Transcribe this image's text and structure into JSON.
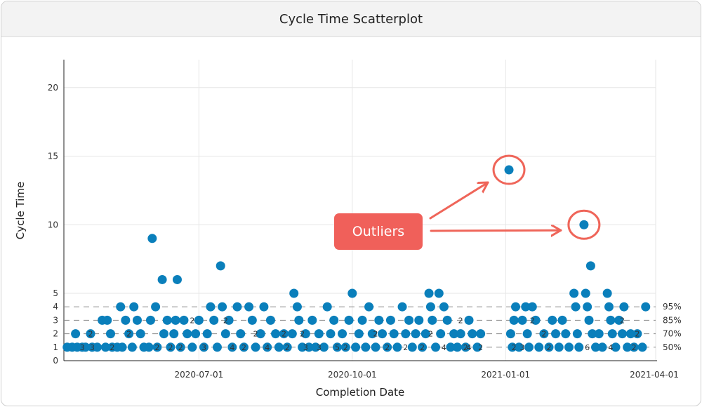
{
  "header": {
    "title": "Cycle Time Scatterplot"
  },
  "callout": {
    "label": "Outliers"
  },
  "colors": {
    "point": "#0a7fbb",
    "accent": "#ef6559",
    "grid": "#e6e6e6"
  },
  "chart_data": {
    "type": "scatter",
    "title": "Cycle Time Scatterplot",
    "xlabel": "Completion Date",
    "ylabel": "Cycle Time",
    "xlim": [
      "2020-04-11",
      "2021-04-01"
    ],
    "ylim": [
      0,
      22
    ],
    "x_ticks": [
      "2020-07-01",
      "2020-10-01",
      "2021-01-01",
      "2021-04-01"
    ],
    "y_ticks": [
      0,
      1,
      2,
      3,
      4,
      5,
      10,
      15,
      20
    ],
    "grid": true,
    "percentiles": [
      {
        "label": "50%",
        "value": 1
      },
      {
        "label": "70%",
        "value": 2
      },
      {
        "label": "85%",
        "value": 3
      },
      {
        "label": "95%",
        "value": 4
      }
    ],
    "points": [
      {
        "x": "2020-04-13",
        "y": 1
      },
      {
        "x": "2020-04-16",
        "y": 1
      },
      {
        "x": "2020-04-18",
        "y": 2
      },
      {
        "x": "2020-04-19",
        "y": 1
      },
      {
        "x": "2020-04-22",
        "y": 1
      },
      {
        "x": "2020-04-24",
        "y": 1
      },
      {
        "x": "2020-04-27",
        "y": 2
      },
      {
        "x": "2020-04-28",
        "y": 1
      },
      {
        "x": "2020-05-01",
        "y": 1
      },
      {
        "x": "2020-05-04",
        "y": 3
      },
      {
        "x": "2020-05-06",
        "y": 1
      },
      {
        "x": "2020-05-07",
        "y": 3
      },
      {
        "x": "2020-05-09",
        "y": 2
      },
      {
        "x": "2020-05-10",
        "y": 1
      },
      {
        "x": "2020-05-13",
        "y": 1
      },
      {
        "x": "2020-05-15",
        "y": 4
      },
      {
        "x": "2020-05-16",
        "y": 1
      },
      {
        "x": "2020-05-18",
        "y": 3
      },
      {
        "x": "2020-05-20",
        "y": 2
      },
      {
        "x": "2020-05-22",
        "y": 1
      },
      {
        "x": "2020-05-23",
        "y": 4
      },
      {
        "x": "2020-05-25",
        "y": 3
      },
      {
        "x": "2020-05-27",
        "y": 2
      },
      {
        "x": "2020-05-29",
        "y": 1
      },
      {
        "x": "2020-06-01",
        "y": 1
      },
      {
        "x": "2020-06-02",
        "y": 3
      },
      {
        "x": "2020-06-03",
        "y": 9
      },
      {
        "x": "2020-06-05",
        "y": 4
      },
      {
        "x": "2020-06-06",
        "y": 1
      },
      {
        "x": "2020-06-09",
        "y": 6
      },
      {
        "x": "2020-06-10",
        "y": 2
      },
      {
        "x": "2020-06-12",
        "y": 3
      },
      {
        "x": "2020-06-14",
        "y": 1
      },
      {
        "x": "2020-06-16",
        "y": 2
      },
      {
        "x": "2020-06-17",
        "y": 3
      },
      {
        "x": "2020-06-18",
        "y": 6
      },
      {
        "x": "2020-06-20",
        "y": 1
      },
      {
        "x": "2020-06-22",
        "y": 3
      },
      {
        "x": "2020-06-24",
        "y": 2
      },
      {
        "x": "2020-06-27",
        "y": 1
      },
      {
        "x": "2020-06-29",
        "y": 2
      },
      {
        "x": "2020-07-01",
        "y": 3
      },
      {
        "x": "2020-07-04",
        "y": 1
      },
      {
        "x": "2020-07-06",
        "y": 2
      },
      {
        "x": "2020-07-08",
        "y": 4
      },
      {
        "x": "2020-07-10",
        "y": 3
      },
      {
        "x": "2020-07-12",
        "y": 1
      },
      {
        "x": "2020-07-14",
        "y": 7
      },
      {
        "x": "2020-07-15",
        "y": 4
      },
      {
        "x": "2020-07-17",
        "y": 2
      },
      {
        "x": "2020-07-19",
        "y": 3
      },
      {
        "x": "2020-07-21",
        "y": 1
      },
      {
        "x": "2020-07-24",
        "y": 4
      },
      {
        "x": "2020-07-26",
        "y": 2
      },
      {
        "x": "2020-07-28",
        "y": 1
      },
      {
        "x": "2020-07-31",
        "y": 4
      },
      {
        "x": "2020-08-02",
        "y": 3
      },
      {
        "x": "2020-08-04",
        "y": 1
      },
      {
        "x": "2020-08-07",
        "y": 2
      },
      {
        "x": "2020-08-09",
        "y": 4
      },
      {
        "x": "2020-08-11",
        "y": 1
      },
      {
        "x": "2020-08-13",
        "y": 3
      },
      {
        "x": "2020-08-16",
        "y": 2
      },
      {
        "x": "2020-08-18",
        "y": 1
      },
      {
        "x": "2020-08-21",
        "y": 2
      },
      {
        "x": "2020-08-23",
        "y": 1
      },
      {
        "x": "2020-08-26",
        "y": 2
      },
      {
        "x": "2020-08-27",
        "y": 5
      },
      {
        "x": "2020-08-29",
        "y": 4
      },
      {
        "x": "2020-08-30",
        "y": 3
      },
      {
        "x": "2020-09-01",
        "y": 1
      },
      {
        "x": "2020-09-03",
        "y": 2
      },
      {
        "x": "2020-09-05",
        "y": 1
      },
      {
        "x": "2020-09-07",
        "y": 3
      },
      {
        "x": "2020-09-09",
        "y": 1
      },
      {
        "x": "2020-09-11",
        "y": 2
      },
      {
        "x": "2020-09-14",
        "y": 1
      },
      {
        "x": "2020-09-16",
        "y": 4
      },
      {
        "x": "2020-09-18",
        "y": 2
      },
      {
        "x": "2020-09-20",
        "y": 3
      },
      {
        "x": "2020-09-22",
        "y": 1
      },
      {
        "x": "2020-09-25",
        "y": 2
      },
      {
        "x": "2020-09-27",
        "y": 1
      },
      {
        "x": "2020-09-29",
        "y": 3
      },
      {
        "x": "2020-10-01",
        "y": 5
      },
      {
        "x": "2020-10-03",
        "y": 1
      },
      {
        "x": "2020-10-05",
        "y": 2
      },
      {
        "x": "2020-10-07",
        "y": 3
      },
      {
        "x": "2020-10-09",
        "y": 1
      },
      {
        "x": "2020-10-11",
        "y": 4
      },
      {
        "x": "2020-10-13",
        "y": 2
      },
      {
        "x": "2020-10-15",
        "y": 1
      },
      {
        "x": "2020-10-17",
        "y": 3
      },
      {
        "x": "2020-10-19",
        "y": 2
      },
      {
        "x": "2020-10-22",
        "y": 1
      },
      {
        "x": "2020-10-24",
        "y": 3
      },
      {
        "x": "2020-10-26",
        "y": 2
      },
      {
        "x": "2020-10-28",
        "y": 1
      },
      {
        "x": "2020-10-31",
        "y": 4
      },
      {
        "x": "2020-11-02",
        "y": 2
      },
      {
        "x": "2020-11-04",
        "y": 3
      },
      {
        "x": "2020-11-06",
        "y": 1
      },
      {
        "x": "2020-11-08",
        "y": 2
      },
      {
        "x": "2020-11-10",
        "y": 3
      },
      {
        "x": "2020-11-12",
        "y": 1
      },
      {
        "x": "2020-11-14",
        "y": 2
      },
      {
        "x": "2020-11-16",
        "y": 5
      },
      {
        "x": "2020-11-17",
        "y": 4
      },
      {
        "x": "2020-11-18",
        "y": 3
      },
      {
        "x": "2020-11-20",
        "y": 1
      },
      {
        "x": "2020-11-22",
        "y": 5
      },
      {
        "x": "2020-11-23",
        "y": 2
      },
      {
        "x": "2020-11-25",
        "y": 4
      },
      {
        "x": "2020-11-27",
        "y": 3
      },
      {
        "x": "2020-11-29",
        "y": 1
      },
      {
        "x": "2020-12-01",
        "y": 2
      },
      {
        "x": "2020-12-03",
        "y": 1
      },
      {
        "x": "2020-12-05",
        "y": 2
      },
      {
        "x": "2020-12-08",
        "y": 1
      },
      {
        "x": "2020-12-10",
        "y": 3
      },
      {
        "x": "2020-12-12",
        "y": 2
      },
      {
        "x": "2020-12-15",
        "y": 1
      },
      {
        "x": "2020-12-17",
        "y": 2
      },
      {
        "x": "2021-01-03",
        "y": 14
      },
      {
        "x": "2021-01-04",
        "y": 2
      },
      {
        "x": "2021-01-05",
        "y": 1
      },
      {
        "x": "2021-01-06",
        "y": 3
      },
      {
        "x": "2021-01-07",
        "y": 4
      },
      {
        "x": "2021-01-09",
        "y": 1
      },
      {
        "x": "2021-01-11",
        "y": 3
      },
      {
        "x": "2021-01-13",
        "y": 4
      },
      {
        "x": "2021-01-14",
        "y": 2
      },
      {
        "x": "2021-01-15",
        "y": 1
      },
      {
        "x": "2021-01-17",
        "y": 4
      },
      {
        "x": "2021-01-19",
        "y": 3
      },
      {
        "x": "2021-01-21",
        "y": 1
      },
      {
        "x": "2021-01-24",
        "y": 2
      },
      {
        "x": "2021-01-27",
        "y": 1
      },
      {
        "x": "2021-01-29",
        "y": 3
      },
      {
        "x": "2021-01-31",
        "y": 2
      },
      {
        "x": "2021-02-02",
        "y": 1
      },
      {
        "x": "2021-02-04",
        "y": 3
      },
      {
        "x": "2021-02-06",
        "y": 2
      },
      {
        "x": "2021-02-08",
        "y": 1
      },
      {
        "x": "2021-02-11",
        "y": 5
      },
      {
        "x": "2021-02-12",
        "y": 4
      },
      {
        "x": "2021-02-13",
        "y": 2
      },
      {
        "x": "2021-02-14",
        "y": 1
      },
      {
        "x": "2021-02-17",
        "y": 10
      },
      {
        "x": "2021-02-18",
        "y": 5
      },
      {
        "x": "2021-02-19",
        "y": 4
      },
      {
        "x": "2021-02-20",
        "y": 3
      },
      {
        "x": "2021-02-21",
        "y": 7
      },
      {
        "x": "2021-02-22",
        "y": 2
      },
      {
        "x": "2021-02-24",
        "y": 1
      },
      {
        "x": "2021-02-26",
        "y": 2
      },
      {
        "x": "2021-02-28",
        "y": 1
      },
      {
        "x": "2021-03-03",
        "y": 5
      },
      {
        "x": "2021-03-04",
        "y": 4
      },
      {
        "x": "2021-03-05",
        "y": 3
      },
      {
        "x": "2021-03-06",
        "y": 2
      },
      {
        "x": "2021-03-08",
        "y": 1
      },
      {
        "x": "2021-03-10",
        "y": 3
      },
      {
        "x": "2021-03-12",
        "y": 2
      },
      {
        "x": "2021-03-13",
        "y": 4
      },
      {
        "x": "2021-03-15",
        "y": 1
      },
      {
        "x": "2021-03-17",
        "y": 2
      },
      {
        "x": "2021-03-19",
        "y": 1
      },
      {
        "x": "2021-03-21",
        "y": 2
      },
      {
        "x": "2021-03-24",
        "y": 1
      },
      {
        "x": "2021-03-26",
        "y": 4
      }
    ],
    "count_labels": [
      {
        "x": "2020-04-22",
        "y": 1,
        "count": "3"
      },
      {
        "x": "2020-04-27",
        "y": 2,
        "count": "2"
      },
      {
        "x": "2020-04-28",
        "y": 1,
        "count": "3"
      },
      {
        "x": "2020-05-10",
        "y": 1,
        "count": "2"
      },
      {
        "x": "2020-05-20",
        "y": 2,
        "count": "2"
      },
      {
        "x": "2020-06-06",
        "y": 1,
        "count": "2"
      },
      {
        "x": "2020-06-14",
        "y": 1,
        "count": "2"
      },
      {
        "x": "2020-06-20",
        "y": 1,
        "count": "2"
      },
      {
        "x": "2020-06-27",
        "y": 3,
        "count": "2"
      },
      {
        "x": "2020-07-04",
        "y": 1,
        "count": "3"
      },
      {
        "x": "2020-07-17",
        "y": 3,
        "count": "2"
      },
      {
        "x": "2020-07-21",
        "y": 1,
        "count": "4"
      },
      {
        "x": "2020-07-28",
        "y": 1,
        "count": "2"
      },
      {
        "x": "2020-08-04",
        "y": 2,
        "count": "2"
      },
      {
        "x": "2020-08-11",
        "y": 1,
        "count": "4"
      },
      {
        "x": "2020-08-21",
        "y": 2,
        "count": "2"
      },
      {
        "x": "2020-08-23",
        "y": 1,
        "count": "2"
      },
      {
        "x": "2020-09-01",
        "y": 2,
        "count": "2"
      },
      {
        "x": "2020-09-03",
        "y": 1,
        "count": "3"
      },
      {
        "x": "2020-09-11",
        "y": 1,
        "count": "3"
      },
      {
        "x": "2020-09-22",
        "y": 1,
        "count": "5"
      },
      {
        "x": "2020-09-27",
        "y": 1,
        "count": "2"
      },
      {
        "x": "2020-10-15",
        "y": 2,
        "count": "2"
      },
      {
        "x": "2020-10-22",
        "y": 1,
        "count": "2"
      },
      {
        "x": "2020-11-02",
        "y": 1,
        "count": "2"
      },
      {
        "x": "2020-11-12",
        "y": 1,
        "count": "2"
      },
      {
        "x": "2020-11-17",
        "y": 2,
        "count": "2"
      },
      {
        "x": "2020-11-25",
        "y": 1,
        "count": "4"
      },
      {
        "x": "2020-12-05",
        "y": 3,
        "count": "2"
      },
      {
        "x": "2020-12-08",
        "y": 1,
        "count": "2"
      },
      {
        "x": "2020-12-10",
        "y": 1,
        "count": "4"
      },
      {
        "x": "2020-12-17",
        "y": 1,
        "count": "2"
      },
      {
        "x": "2021-01-06",
        "y": 1,
        "count": "2"
      },
      {
        "x": "2021-01-11",
        "y": 1,
        "count": "3"
      },
      {
        "x": "2021-01-17",
        "y": 3,
        "count": "2"
      },
      {
        "x": "2021-01-24",
        "y": 2,
        "count": "2"
      },
      {
        "x": "2021-01-27",
        "y": 1,
        "count": "2"
      },
      {
        "x": "2021-02-19",
        "y": 1,
        "count": "6"
      },
      {
        "x": "2021-03-05",
        "y": 1,
        "count": "4"
      },
      {
        "x": "2021-03-12",
        "y": 3,
        "count": "2"
      },
      {
        "x": "2021-03-21",
        "y": 2,
        "count": "2"
      },
      {
        "x": "2021-03-19",
        "y": 1,
        "count": "2"
      }
    ],
    "highlighted_outliers": [
      {
        "x": "2021-01-03",
        "y": 14
      },
      {
        "x": "2021-02-17",
        "y": 10
      }
    ]
  }
}
